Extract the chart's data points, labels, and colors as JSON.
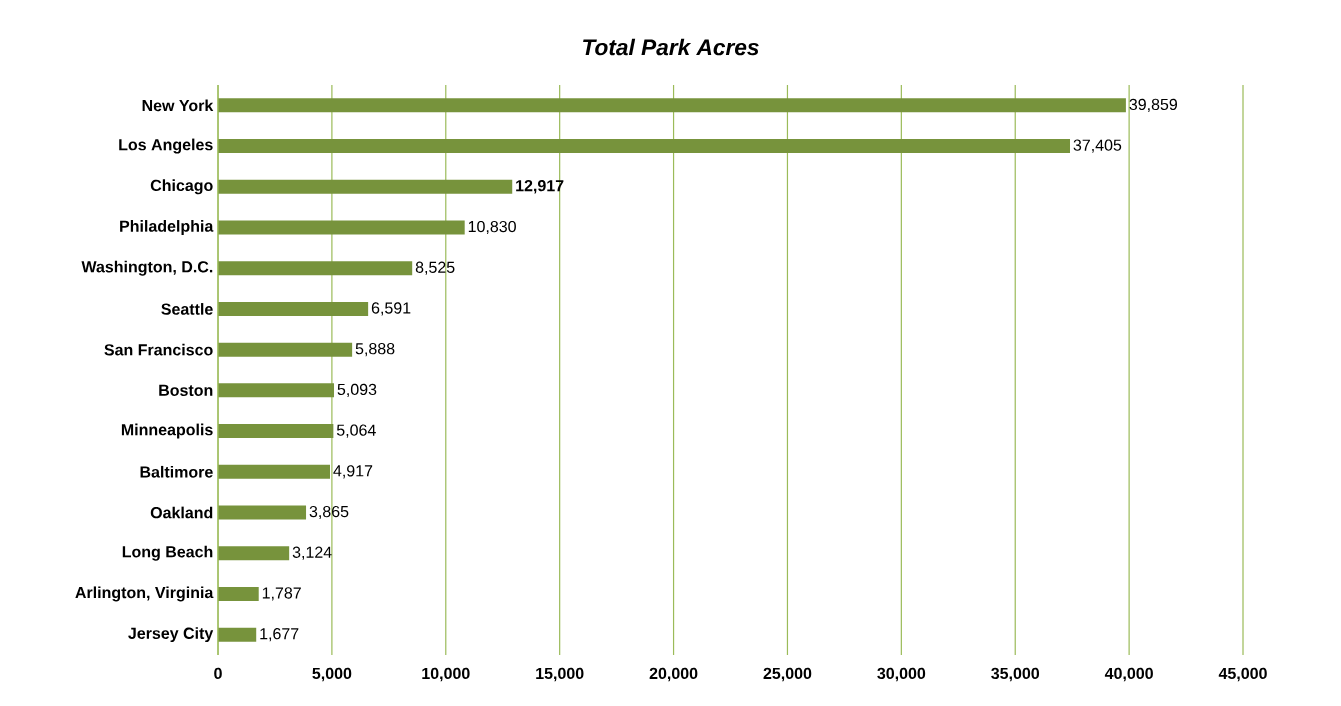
{
  "chart_data": {
    "type": "bar",
    "orientation": "horizontal",
    "title": "Total Park Acres",
    "categories": [
      "New York",
      "Los Angeles",
      "Chicago",
      "Philadelphia",
      "Washington, D.C.",
      "Seattle",
      "San Francisco",
      "Boston",
      "Minneapolis",
      "Baltimore",
      "Oakland",
      "Long Beach",
      "Arlington, Virginia",
      "Jersey City"
    ],
    "values": [
      39859,
      37405,
      12917,
      10830,
      8525,
      6591,
      5888,
      5093,
      5064,
      4917,
      3865,
      3124,
      1787,
      1677
    ],
    "value_labels": [
      "39,859",
      "37,405",
      "**12,917**",
      "10,830",
      "8,525",
      "6,591",
      "5,888",
      "5,093",
      "5,064",
      "4,917",
      "3,865",
      "3,124",
      "1,787",
      "1,677"
    ],
    "color": "#77933c",
    "xlim": [
      0,
      45000
    ],
    "xticks": [
      0,
      {
        "value": 5000,
        "label": "5,000"
      },
      {
        "value": 10000,
        "label": "10,000"
      },
      {
        "value": 15000,
        "label": "15,000"
      },
      {
        "value": 20000,
        "label": "20,000"
      },
      {
        "value": 25000,
        "label": "25,000"
      },
      {
        "value": 30000,
        "label": "30,000"
      },
      {
        "value": 35000,
        "label": "35,000"
      },
      {
        "value": 40000,
        "label": "40,000"
      },
      {
        "value": 45000,
        "label": "45,000"
      }
    ],
    "grid": "x"
  }
}
